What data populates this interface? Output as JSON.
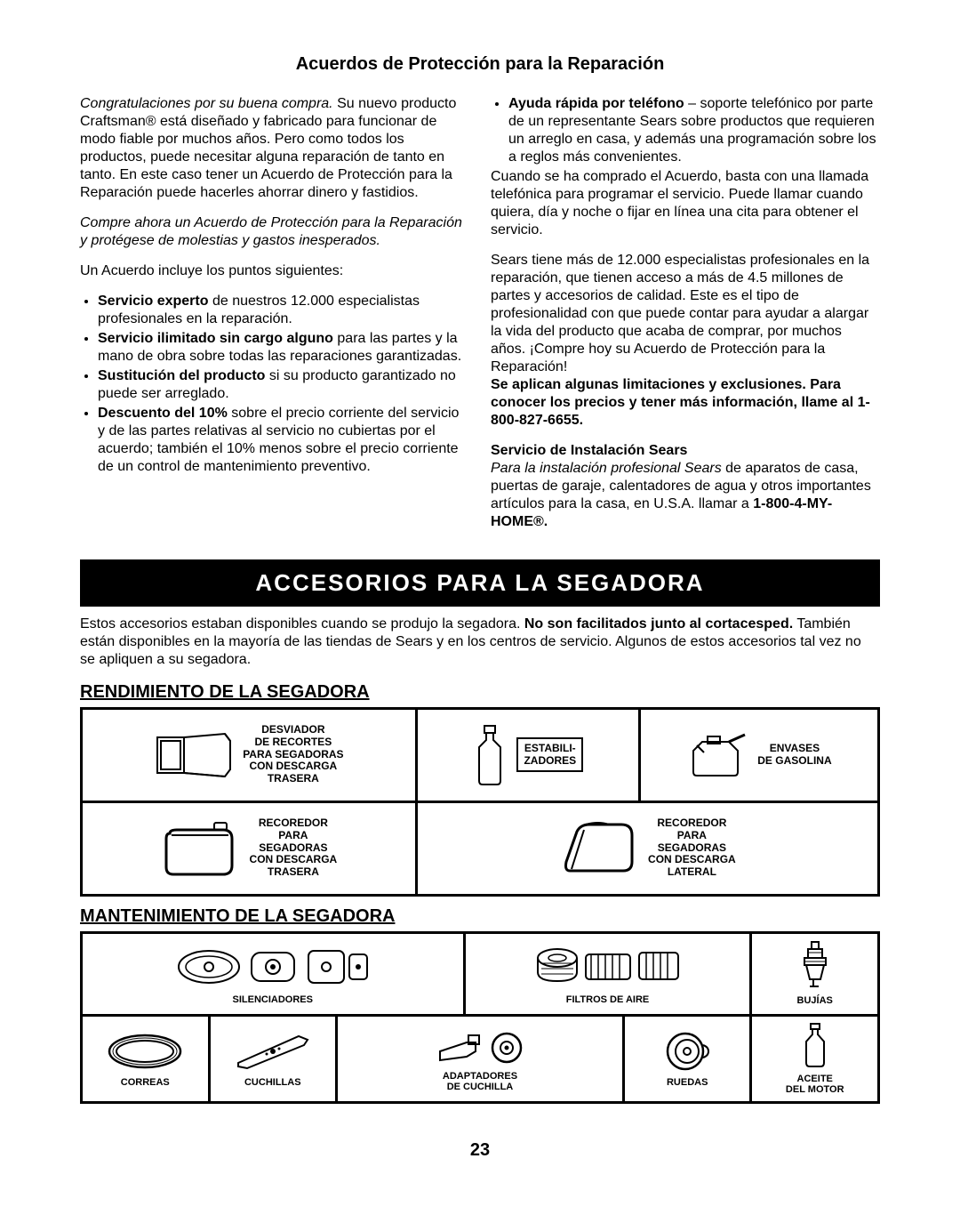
{
  "title": "Acuerdos de Protección para la Reparación",
  "col1": {
    "p1_italic": "Congratulaciones por su buena compra. ",
    "p1_rest": "Su nuevo producto Craftsman® está diseñado y fabricado para funcionar de modo fiable por muchos años. Pero como todos los productos, puede necesitar alguna reparación de tanto en tanto. En este caso tener un Acuerdo de Protección para la Reparación puede hacerles ahorrar dinero y fastidios.",
    "p2_italic": "Compre ahora un Acuerdo de Protección para la Reparación y protégese de molestias y gastos inesperados.",
    "p3": "Un Acuerdo incluye los puntos siguientes:",
    "li1_b": "Servicio experto",
    "li1_r": " de nuestros 12.000 especialistas profesionales en la reparación.",
    "li2_b": "Servicio ilimitado sin cargo alguno",
    "li2_r": " para las partes y la mano de obra sobre todas las reparaciones garantizadas.",
    "li3_b": "Sustitución del producto",
    "li3_r": " si su producto garantizado no puede ser arreglado.",
    "li4_b": "Descuento del 10%",
    "li4_r": " sobre el precio corriente del servicio y de las partes relativas al servicio no cubiertas por el acuerdo; también el 10% menos sobre el precio corriente de un control de mantenimiento preventivo."
  },
  "col2": {
    "li5_b": "Ayuda rápida por teléfono",
    "li5_r": " – soporte telefónico por parte de un representante Sears sobre productos que requieren un arreglo en casa, y además una programación sobre los a reglos más convenientes.",
    "p4": "Cuando se ha comprado el Acuerdo, basta con una llamada telefónica para programar el servicio. Puede llamar cuando quiera, día y noche o fijar en línea una cita para obtener el servicio.",
    "p5": "Sears tiene más de 12.000 especialistas profesionales en la reparación, que tienen acceso a más de 4.5 millones de partes y accesorios de calidad. Este es el tipo de profesionalidad con que puede contar para ayudar a alargar la vida del producto que acaba de comprar, por muchos años. ¡Compre hoy su Acuerdo de Protección para la Reparación!",
    "p5_b": "Se aplican algunas limitaciones y exclusiones. Para conocer los precios y tener más información, llame al 1-800-827-6655.",
    "p6_b": "Servicio de Instalación Sears",
    "p6_i": "Para la instalación profesional Sears ",
    "p6_r": "de aparatos de casa, puertas de garaje, calentadores de agua y otros importantes artículos para la casa, en U.S.A. llamar a ",
    "p6_b2": "1-800-4-MY-HOME®."
  },
  "banner": "ACCESORIOS PARA LA SEGADORA",
  "intro_a": "Estos accesorios estaban disponibles cuando se produjo la segadora. ",
  "intro_b": "No son facilitados junto al cortacesped.",
  "intro_c": " También están disponibles en la mayoría de las tiendas de Sears y en los centros de servicio. Algunos de estos accesorios tal vez no se apliquen a su segadora.",
  "section1": "RENDIMIENTO DE LA SEGADORA",
  "perf": {
    "c1": "DESVIADOR\nDE RECORTES\nPARA SEGADORAS\nCON DESCARGA\nTRASERA",
    "c2": "ESTABILI-\nZADORES",
    "c3": "ENVASES\nDE GASOLINA",
    "c4": "RECOREDOR\nPARA\nSEGADORAS\nCON DESCARGA\nTRASERA",
    "c5": "RECOREDOR\nPARA\nSEGADORAS\nCON DESCARGA\nLATERAL"
  },
  "section2": "MANTENIMIENTO DE LA SEGADORA",
  "maint": {
    "m1": "SILENCIADORES",
    "m2": "FILTROS DE AIRE",
    "m3": "BUJÍAS",
    "m4": "CORREAS",
    "m5": "CUCHILLAS",
    "m6": "ADAPTADORES\nDE CUCHILLA",
    "m7": "RUEDAS",
    "m8": "ACEITE\nDEL MOTOR"
  },
  "page": "23"
}
